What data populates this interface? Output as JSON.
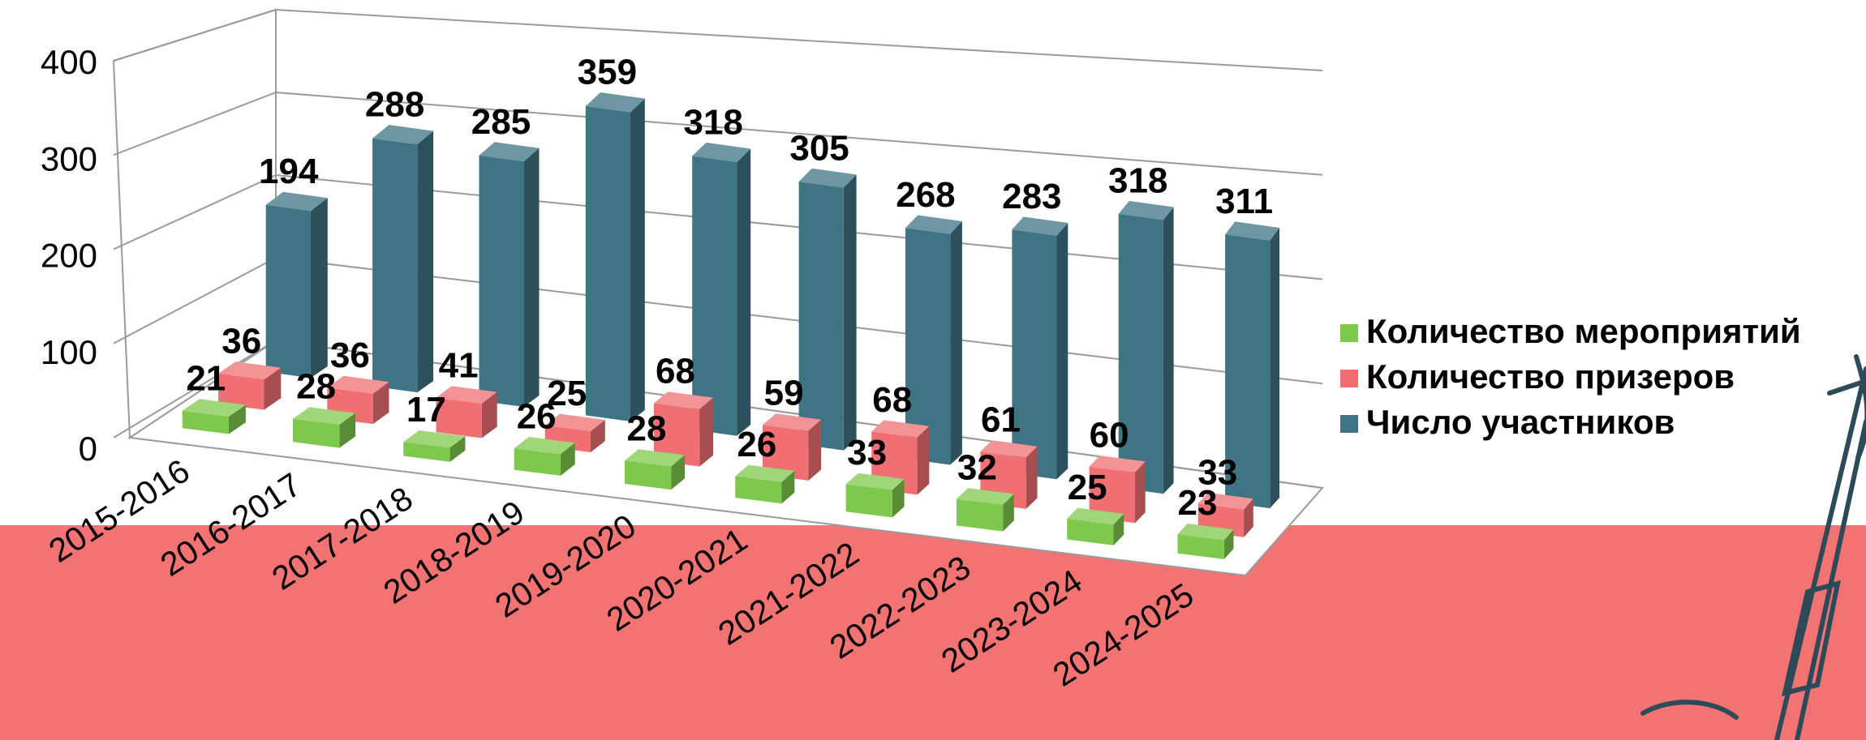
{
  "chart_data": {
    "type": "bar",
    "subtype": "3d-clustered-column",
    "categories": [
      "2015-2016",
      "2016-2017",
      "2017-2018",
      "2018-2019",
      "2019-2020",
      "2020-2021",
      "2021-2022",
      "2022-2023",
      "2023-2024",
      "2024-2025"
    ],
    "series": [
      {
        "name": "Количество мероприятий",
        "color": "#7ec84b",
        "values": [
          21,
          28,
          17,
          26,
          28,
          26,
          33,
          32,
          25,
          23
        ]
      },
      {
        "name": "Количество призеров",
        "color": "#ef6f72",
        "values": [
          36,
          36,
          41,
          25,
          68,
          59,
          68,
          61,
          60,
          33
        ]
      },
      {
        "name": "Число участников",
        "color": "#3f7484",
        "values": [
          194,
          288,
          285,
          359,
          318,
          305,
          268,
          283,
          318,
          311
        ]
      }
    ],
    "yticks": [
      0,
      100,
      200,
      300,
      400
    ],
    "ylim": [
      0,
      400
    ],
    "grid": true,
    "legend_position": "right",
    "title": "",
    "xlabel": "",
    "ylabel": ""
  },
  "decor": {
    "band_color": "#f37373",
    "pen_color": "#2c4a57"
  }
}
